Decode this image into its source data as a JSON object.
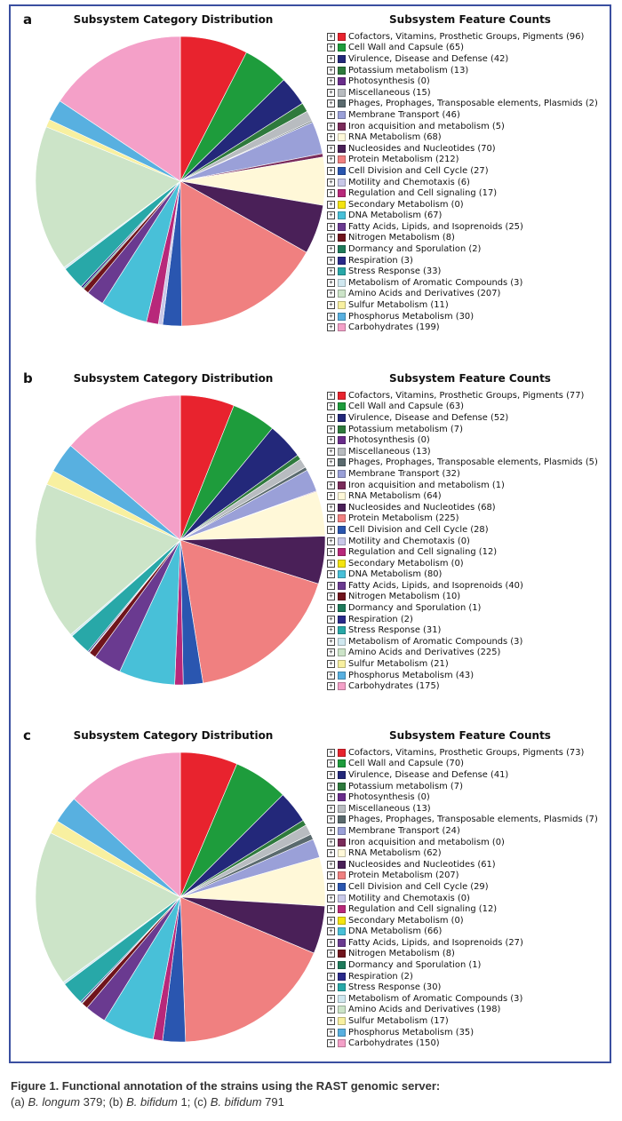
{
  "categories": [
    "Cofactors, Vitamins, Prosthetic Groups, Pigments",
    "Cell Wall and Capsule",
    "Virulence, Disease and Defense",
    "Potassium metabolism",
    "Photosynthesis",
    "Miscellaneous",
    "Phages, Prophages, Transposable elements, Plasmids",
    "Membrane Transport",
    "Iron acquisition and metabolism",
    "RNA Metabolism",
    "Nucleosides and Nucleotides",
    "Protein Metabolism",
    "Cell Division and Cell Cycle",
    "Motility and Chemotaxis",
    "Regulation and Cell signaling",
    "Secondary Metabolism",
    "DNA Metabolism",
    "Fatty Acids, Lipids, and Isoprenoids",
    "Nitrogen Metabolism",
    "Dormancy and Sporulation",
    "Respiration",
    "Stress Response",
    "Metabolism of Aromatic Compounds",
    "Amino Acids and Derivatives",
    "Sulfur Metabolism",
    "Phosphorus Metabolism",
    "Carbohydrates"
  ],
  "colors": [
    "#e8232e",
    "#1e9c3c",
    "#23287a",
    "#2e7a3c",
    "#6a2d8c",
    "#b8bcc0",
    "#5a6a6e",
    "#9aa0d8",
    "#7a2b5a",
    "#fff8d8",
    "#4a2058",
    "#f08080",
    "#2a56b0",
    "#c8c8e8",
    "#b8287a",
    "#f4e410",
    "#48c0d8",
    "#6a3a90",
    "#70141c",
    "#1e7a5a",
    "#2a2a8a",
    "#28a8a8",
    "#d0e8f0",
    "#cce4c8",
    "#f8f0a0",
    "#58b0e0",
    "#f4a0c8"
  ],
  "chart_data": [
    {
      "type": "pie",
      "panel": "a",
      "title": "Subsystem Category Distribution",
      "legend_title": "Subsystem Feature Counts",
      "labels": "categories",
      "values": [
        96,
        65,
        42,
        13,
        0,
        15,
        2,
        46,
        5,
        68,
        70,
        212,
        27,
        6,
        17,
        0,
        67,
        25,
        8,
        2,
        3,
        33,
        3,
        207,
        11,
        30,
        199
      ]
    },
    {
      "type": "pie",
      "panel": "b",
      "title": "Subsystem Category Distribution",
      "legend_title": "Subsystem Feature Counts",
      "labels": "categories",
      "values": [
        77,
        63,
        52,
        7,
        0,
        13,
        5,
        32,
        1,
        64,
        68,
        225,
        28,
        0,
        12,
        0,
        80,
        40,
        10,
        1,
        2,
        31,
        3,
        225,
        21,
        43,
        175
      ]
    },
    {
      "type": "pie",
      "panel": "c",
      "title": "Subsystem Category Distribution",
      "legend_title": "Subsystem Feature Counts",
      "labels": "categories",
      "values": [
        73,
        70,
        41,
        7,
        0,
        13,
        7,
        24,
        0,
        62,
        61,
        207,
        29,
        0,
        12,
        0,
        66,
        27,
        8,
        1,
        2,
        30,
        3,
        198,
        17,
        35,
        150
      ]
    }
  ],
  "caption": {
    "title": "Figure 1. Functional annotation of the strains using the RAST genomic server:",
    "sub": [
      {
        "text": "(a) ",
        "italic": false
      },
      {
        "text": "B. longum",
        "italic": true
      },
      {
        "text": " 379; (b) ",
        "italic": false
      },
      {
        "text": "B. bifidum",
        "italic": true
      },
      {
        "text": " 1; (c) ",
        "italic": false
      },
      {
        "text": "B. bifidum",
        "italic": true
      },
      {
        "text": " 791",
        "italic": false
      }
    ]
  },
  "icons": {
    "expand": "plus-box-icon"
  },
  "expand_glyph": "+"
}
